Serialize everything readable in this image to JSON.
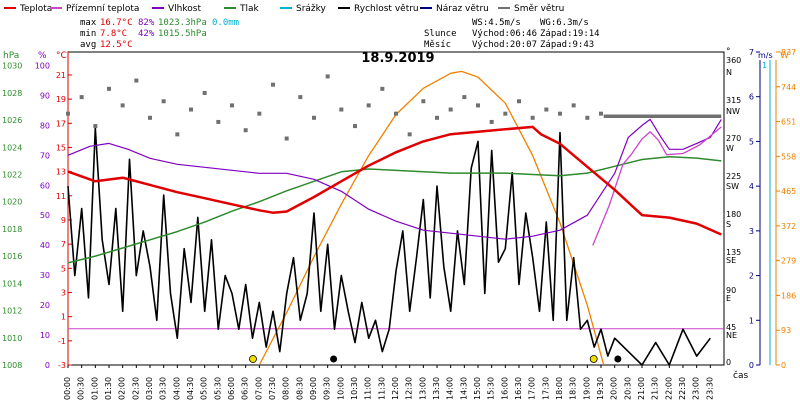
{
  "legend": [
    {
      "label": "Teplota",
      "color": "#e00000"
    },
    {
      "label": "Přízemní teplota",
      "color": "#cc44cc"
    },
    {
      "label": "Vlhkost",
      "color": "#8000c0"
    },
    {
      "label": "Tlak",
      "color": "#2e8b2e"
    },
    {
      "label": "Srážky",
      "color": "#00b0d0"
    },
    {
      "label": "Rychlost větru",
      "color": "#000000"
    },
    {
      "label": "Náraz větru",
      "color": "#000080"
    },
    {
      "label": "Směr větru",
      "color": "#707070"
    }
  ],
  "stats": {
    "max_label": "max",
    "max_temp": "16.7°C",
    "max_hum": "82%",
    "max_press": "1023.3hPa",
    "precip": "0.0mm",
    "min_label": "min",
    "min_temp": "7.8°C",
    "min_hum": "42%",
    "min_press": "1015.5hPa",
    "avg_label": "avg",
    "avg_temp": "12.5°C"
  },
  "wind": {
    "ws": "WS:4.5m/s",
    "wg": "WG:6.3m/s"
  },
  "sun": {
    "label": "Slunce",
    "rise": "Východ:06:46",
    "set": "Západ:19:14"
  },
  "moon": {
    "label": "Měsíc",
    "rise": "Východ:20:07",
    "set": "Západ:9:43"
  },
  "colors": {
    "temp": "#e00000",
    "ground": "#cc44cc",
    "hum": "#8000c0",
    "press": "#2e8b2e",
    "precip": "#00b0d0",
    "wind": "#000000",
    "gust": "#000080",
    "dir": "#707070",
    "solar": "#f08000"
  },
  "chart_data": {
    "type": "line",
    "title": "18.9.2019",
    "x_unit": "čas",
    "x_ticks": [
      "00:00",
      "00:30",
      "01:00",
      "01:30",
      "02:00",
      "02:30",
      "03:00",
      "03:30",
      "04:00",
      "04:30",
      "05:00",
      "05:30",
      "06:00",
      "06:30",
      "07:00",
      "07:30",
      "08:00",
      "08:30",
      "09:00",
      "09:30",
      "10:00",
      "10:30",
      "11:00",
      "11:30",
      "12:00",
      "12:30",
      "13:00",
      "13:30",
      "14:00",
      "14:30",
      "15:00",
      "15:30",
      "16:00",
      "16:30",
      "17:00",
      "17:30",
      "18:00",
      "18:30",
      "19:00",
      "19:30",
      "20:00",
      "20:30",
      "21:00",
      "21:30",
      "22:00",
      "22:30",
      "23:00",
      "23:30"
    ],
    "axes": {
      "hPa": {
        "label": "hPa",
        "range": [
          1008,
          1031
        ],
        "ticks": [
          1008,
          1010,
          1012,
          1014,
          1016,
          1018,
          1020,
          1022,
          1024,
          1026,
          1028,
          1030
        ]
      },
      "pct": {
        "label": "%",
        "range": [
          0,
          104.5
        ],
        "ticks": [
          0,
          10,
          20,
          30,
          40,
          50,
          60,
          70,
          80,
          90,
          100
        ]
      },
      "temp": {
        "label": "°C",
        "range": [
          -3,
          22.9
        ],
        "ticks": [
          -3,
          -1,
          1,
          3,
          5,
          7,
          9,
          11,
          13,
          15,
          17,
          19,
          21
        ]
      },
      "dir": {
        "label": "°",
        "ticks": [
          "360",
          "N",
          "315",
          "NW",
          "270",
          "W",
          "225",
          "SW",
          "180",
          "S",
          "135",
          "SE",
          "90",
          "E",
          "45",
          "NE",
          "0"
        ]
      },
      "wind": {
        "label": "m/s",
        "range": [
          0,
          7
        ],
        "ticks": [
          0,
          1,
          2,
          3,
          4,
          5,
          6,
          7
        ],
        "top": "1"
      },
      "solar": {
        "label": "W",
        "range": [
          0,
          837
        ],
        "ticks": [
          0,
          93,
          186,
          279,
          372,
          465,
          558,
          651,
          744,
          837
        ]
      }
    },
    "series": [
      {
        "name": "Teplota",
        "axis": "temp",
        "x": [
          0,
          1,
          2,
          3,
          4,
          5,
          6,
          7,
          7.5,
          8,
          9,
          10,
          11,
          12,
          13,
          14,
          15,
          16,
          17,
          17.3,
          18,
          19,
          20,
          21,
          22,
          23,
          23.9
        ],
        "y": [
          13.0,
          12.2,
          12.5,
          11.9,
          11.3,
          10.8,
          10.3,
          9.8,
          9.6,
          9.7,
          10.9,
          12.2,
          13.5,
          14.6,
          15.5,
          16.1,
          16.3,
          16.5,
          16.7,
          16.1,
          15.3,
          13.4,
          11.5,
          9.4,
          9.2,
          8.7,
          7.8
        ]
      },
      {
        "name": "Přízemní teplota",
        "axis": "temp",
        "x": [
          19.2,
          19.8,
          20.3,
          20.6,
          21.0,
          21.3,
          21.6,
          21.9,
          22.5,
          23.1,
          23.9
        ],
        "y": [
          6.9,
          10.2,
          13.6,
          14.4,
          15.7,
          16.3,
          15.6,
          14.4,
          14.5,
          15.2,
          16.7
        ]
      },
      {
        "name": "Vlhkost",
        "axis": "pct",
        "x": [
          0,
          0.8,
          1.5,
          2.2,
          3,
          4,
          5,
          6,
          7,
          8,
          9,
          10,
          11,
          12,
          13,
          14,
          15,
          16,
          17,
          18,
          19,
          20,
          20.5,
          21,
          21.3,
          21.7,
          22,
          22.5,
          23,
          23.5,
          23.9
        ],
        "y": [
          70,
          73,
          74,
          72,
          69,
          67,
          66,
          65,
          64,
          64,
          62,
          58,
          52,
          48,
          45,
          44,
          43,
          42,
          43,
          45,
          50,
          64,
          76,
          80,
          82,
          76,
          72,
          72,
          74,
          76,
          82
        ]
      },
      {
        "name": "Tlak",
        "axis": "hPa",
        "x": [
          0,
          1,
          2,
          3,
          4,
          5,
          6,
          7,
          8,
          9,
          10,
          11,
          12,
          13,
          14,
          15,
          16,
          17,
          18,
          19,
          20,
          21,
          22,
          23,
          23.9
        ],
        "y": [
          1015.5,
          1016.0,
          1016.6,
          1017.2,
          1017.8,
          1018.5,
          1019.3,
          1020.0,
          1020.8,
          1021.5,
          1022.2,
          1022.4,
          1022.3,
          1022.2,
          1022.1,
          1022.1,
          1022.1,
          1022.0,
          1021.9,
          1022.1,
          1022.6,
          1023.1,
          1023.3,
          1023.2,
          1023.0
        ]
      },
      {
        "name": "Rychlost větru",
        "axis": "wind",
        "x": [
          0,
          0.5,
          1,
          1.5,
          2,
          2.5,
          3,
          3.5,
          4,
          4.5,
          5,
          5.5,
          6,
          6.5,
          7,
          7.5,
          8,
          8.5,
          9,
          9.5,
          10,
          10.5,
          11,
          11.5,
          12,
          12.5,
          13,
          13.5,
          14,
          14.5,
          15,
          15.5,
          16,
          16.5,
          17,
          17.5,
          18,
          18.5,
          19,
          19.5,
          20,
          20.5,
          21,
          21.5,
          22,
          22.5,
          23,
          23.5
        ],
        "y": [
          2.4,
          2.0,
          1.4,
          2.8,
          1.4,
          1.0,
          1.8,
          1.2,
          1.0,
          1.5,
          1.5,
          1.2,
          0.8,
          0.6,
          0.3,
          0.8,
          1.0,
          1.3,
          1.5,
          1.6,
          1.2,
          0.9,
          0.8,
          0.4,
          1.0,
          1.6,
          1.8,
          2.3,
          2.4,
          2.3,
          2.1,
          1.8,
          2.2,
          2.4,
          2.0,
          2.6,
          1.4,
          0.6,
          0.3,
          0.2,
          0.1,
          0,
          0,
          0.2,
          0.4,
          0.1,
          0,
          0
        ]
      },
      {
        "name": "Náraz větru",
        "axis": "wind",
        "x": [
          0,
          0.25,
          0.5,
          0.75,
          1,
          1.25,
          1.5,
          1.75,
          2,
          2.25,
          2.5,
          2.75,
          3,
          3.25,
          3.5,
          3.75,
          4,
          4.25,
          4.5,
          4.75,
          5,
          5.25,
          5.5,
          5.75,
          6,
          6.25,
          6.5,
          6.75,
          7,
          7.25,
          7.5,
          7.75,
          8,
          8.25,
          8.5,
          8.75,
          9,
          9.25,
          9.5,
          9.75,
          10,
          10.25,
          10.5,
          10.75,
          11,
          11.25,
          11.5,
          11.75,
          12,
          12.25,
          12.5,
          12.75,
          13,
          13.25,
          13.5,
          13.75,
          14,
          14.25,
          14.5,
          14.75,
          15,
          15.25,
          15.5,
          15.75,
          16,
          16.25,
          16.5,
          16.75,
          17,
          17.25,
          17.5,
          17.75,
          18,
          18.25,
          18.5,
          18.75,
          19,
          19.25,
          19.5,
          19.75,
          20,
          20.5,
          21,
          21.5,
          22,
          22.5,
          23,
          23.5
        ],
        "y": [
          4.0,
          2.0,
          3.5,
          1.5,
          5.3,
          2.8,
          1.8,
          3.5,
          1.2,
          4.6,
          2.0,
          3.0,
          2.2,
          1.0,
          3.8,
          1.6,
          0.6,
          2.6,
          1.4,
          3.3,
          1.2,
          2.8,
          0.8,
          2.0,
          1.6,
          0.8,
          1.8,
          0.6,
          1.4,
          0.4,
          1.2,
          0.3,
          1.6,
          2.4,
          1.0,
          1.6,
          3.4,
          1.2,
          2.7,
          0.8,
          2.0,
          1.2,
          0.5,
          1.4,
          0.6,
          1.0,
          0.3,
          0.8,
          2.1,
          3.0,
          1.2,
          2.4,
          3.7,
          1.5,
          4.0,
          2.2,
          1.2,
          3.0,
          1.8,
          4.4,
          5.0,
          1.6,
          4.8,
          2.3,
          2.6,
          4.3,
          1.8,
          3.4,
          2.4,
          1.2,
          3.2,
          1.0,
          5.2,
          1.0,
          2.4,
          0.8,
          1.0,
          0.4,
          0.8,
          0.2,
          0.6,
          0.3,
          0,
          0.5,
          0,
          0.8,
          0.2,
          0.6
        ]
      },
      {
        "name": "Směr větru",
        "axis": "dir",
        "type": "scatter",
        "x": [
          0,
          0.5,
          1,
          1.5,
          2,
          2.5,
          3,
          3.5,
          4,
          4.5,
          5,
          5.5,
          6,
          6.5,
          7,
          7.5,
          8,
          8.5,
          9,
          9.5,
          10,
          10.5,
          11,
          11.5,
          12,
          12.5,
          13,
          13.5,
          14,
          14.5,
          15,
          15.5,
          16,
          16.5,
          17,
          17.5,
          18,
          18.5,
          19,
          19.5
        ],
        "y": [
          300,
          320,
          285,
          330,
          310,
          340,
          295,
          315,
          275,
          305,
          325,
          290,
          310,
          280,
          300,
          335,
          270,
          320,
          295,
          345,
          305,
          285,
          310,
          330,
          300,
          275,
          315,
          295,
          305,
          320,
          310,
          290,
          300,
          315,
          295,
          305,
          300,
          310,
          295,
          300
        ]
      },
      {
        "name": "Směr větru (stálý)",
        "axis": "dir",
        "type": "line",
        "x": [
          19.6,
          23.9
        ],
        "y": [
          297,
          297
        ]
      },
      {
        "name": "Sluneční záření",
        "axis": "solar",
        "x": [
          7.0,
          8,
          9,
          10,
          11,
          12,
          13,
          14,
          14.4,
          15,
          16,
          17,
          18,
          19,
          19.6
        ],
        "y": [
          0,
          140,
          290,
          430,
          560,
          670,
          740,
          780,
          785,
          770,
          700,
          560,
          380,
          160,
          0
        ]
      }
    ],
    "markers": {
      "sunrise": "06:46",
      "sunset": "19:14",
      "moonrise": "20:07",
      "moonset": "9:43"
    },
    "grid": false,
    "legend_position": "top"
  }
}
